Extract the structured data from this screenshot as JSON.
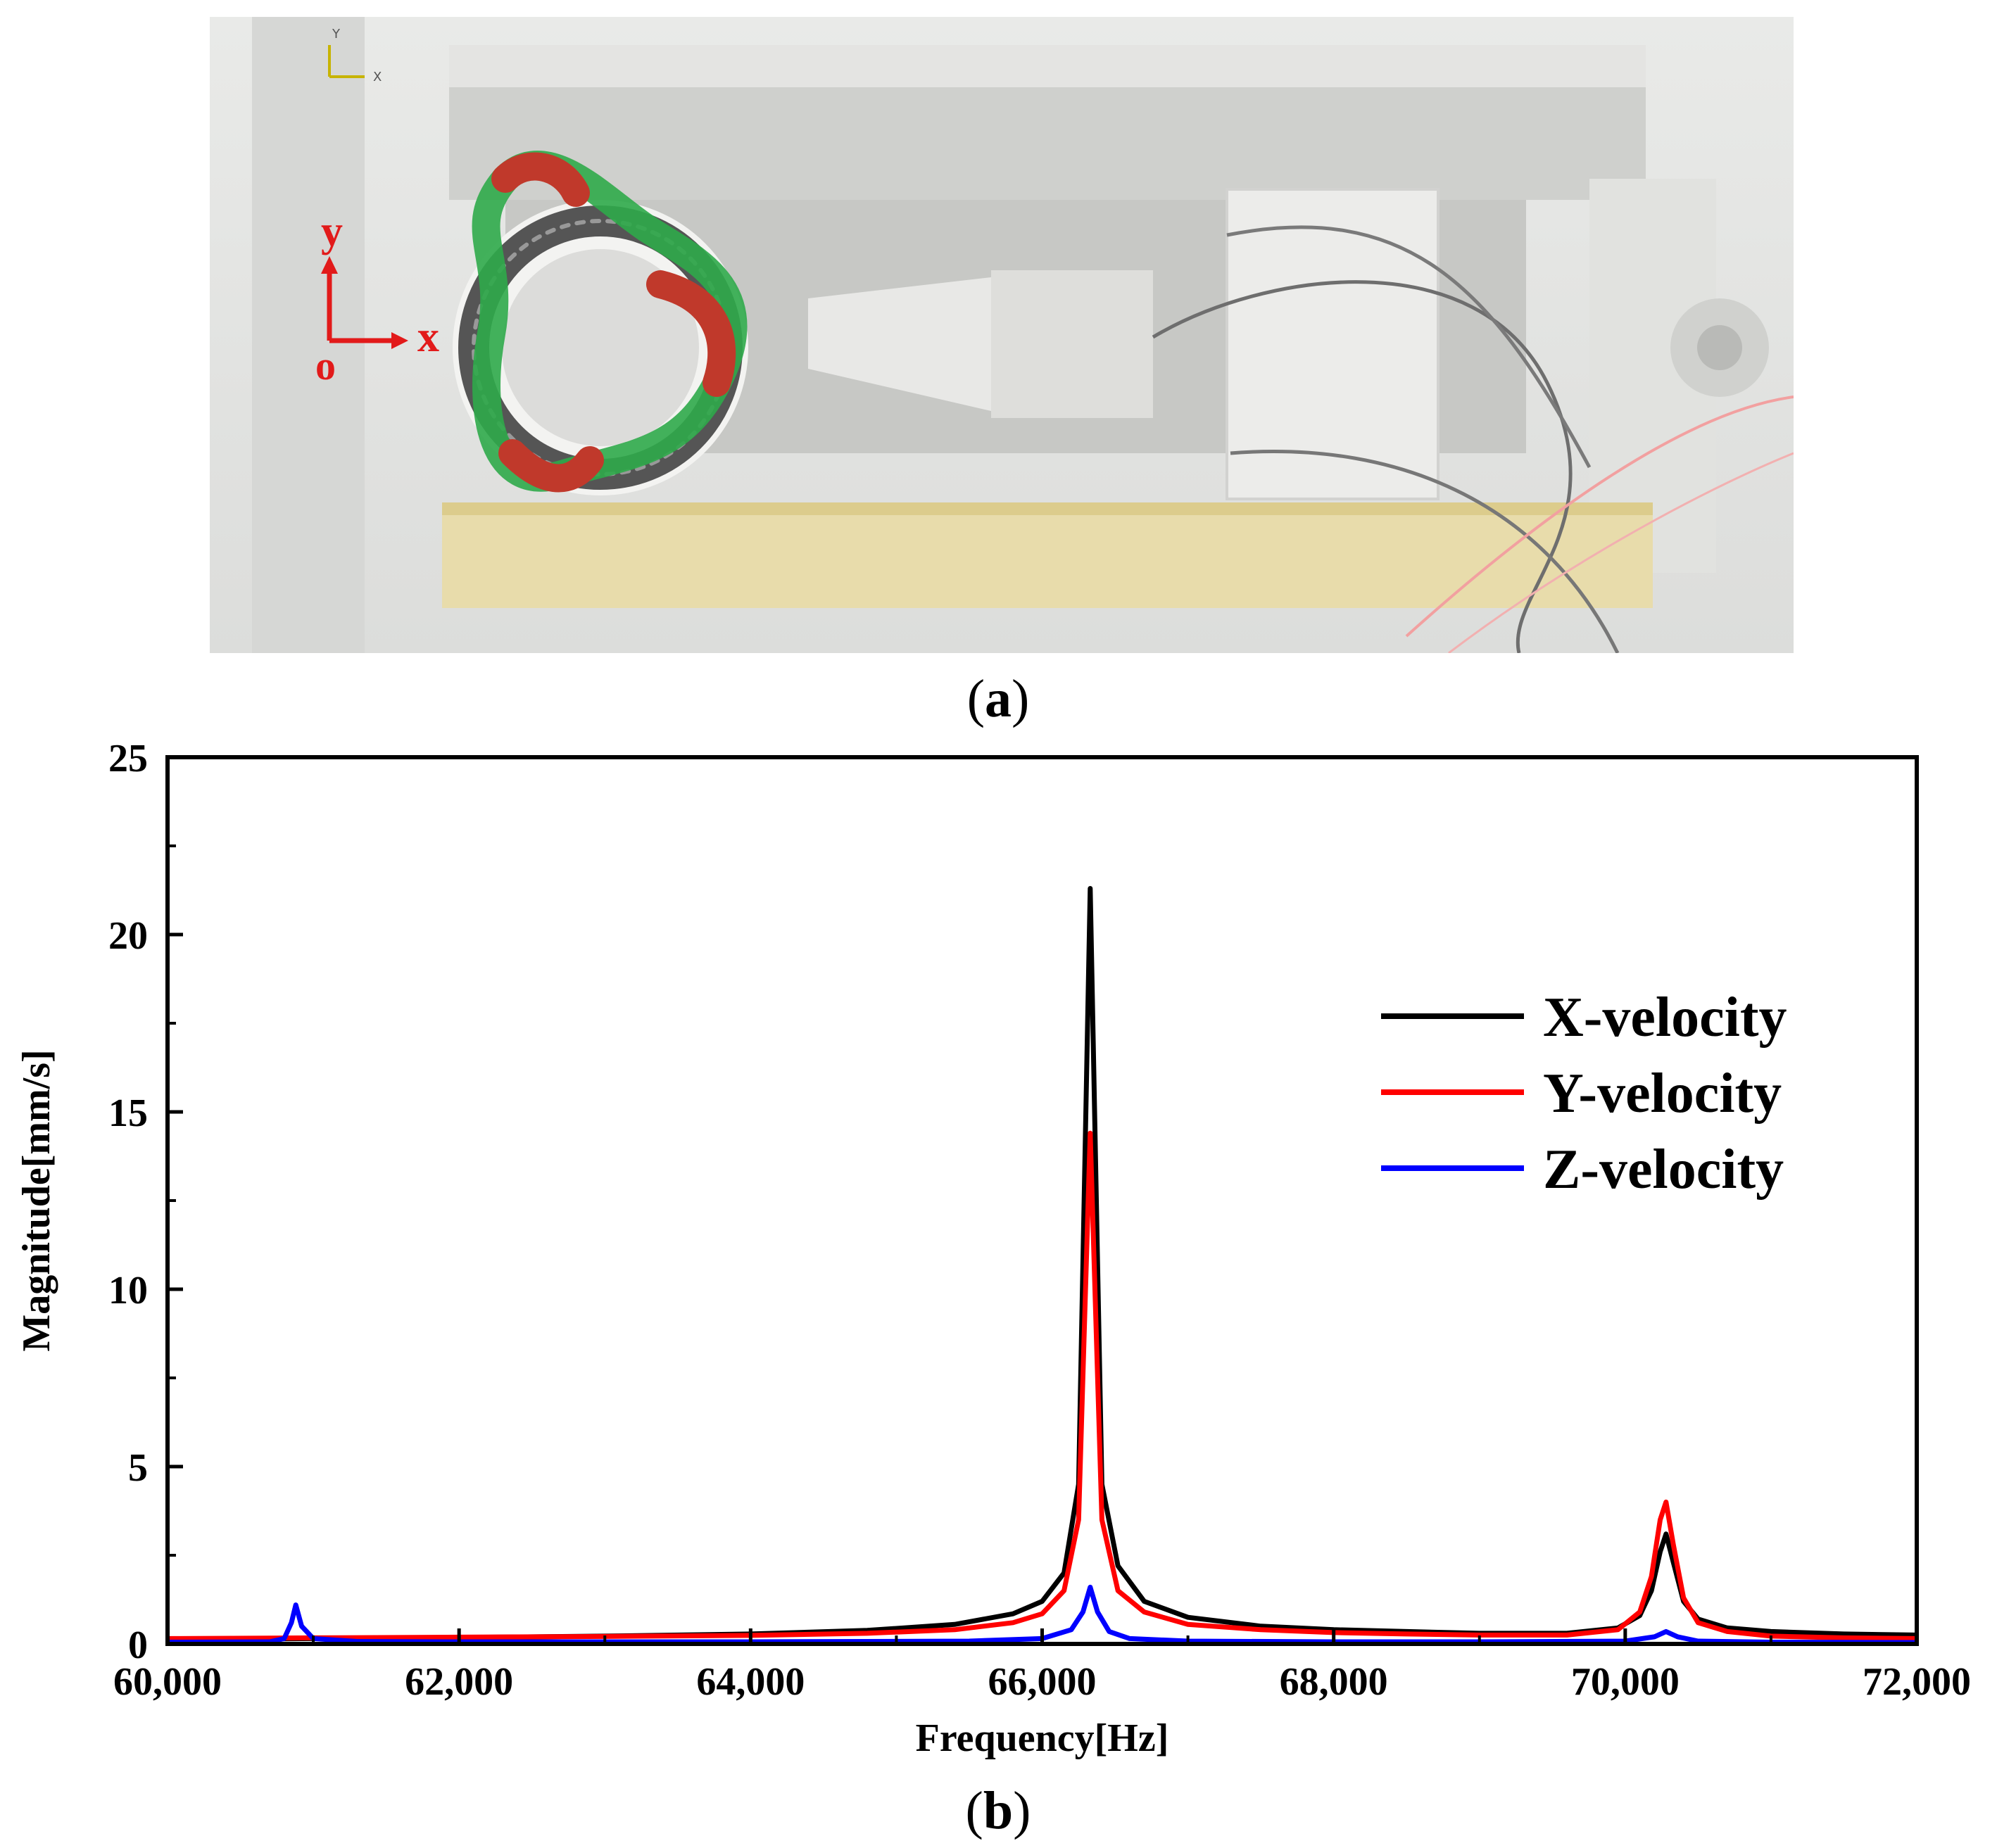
{
  "figure": {
    "panel_a": {
      "caption_prefix": "(",
      "caption_letter": "a",
      "caption_suffix": ")",
      "coordinate_labels": {
        "y": "y",
        "x": "x",
        "origin": "o"
      },
      "triad_labels": {
        "y": "Y",
        "x": "X"
      }
    },
    "panel_b": {
      "caption_prefix": "(",
      "caption_letter": "b",
      "caption_suffix": ")"
    }
  },
  "chart_data": {
    "type": "line",
    "title": "",
    "xlabel": "Frequency[Hz]",
    "ylabel": "Magnitude[mm/s]",
    "xlim": [
      60000,
      72000
    ],
    "ylim": [
      0,
      25
    ],
    "xticks": [
      60000,
      62000,
      64000,
      66000,
      68000,
      70000,
      72000
    ],
    "xtick_labels": [
      "60,000",
      "62,000",
      "64,000",
      "66,000",
      "68,000",
      "70,000",
      "72,000"
    ],
    "yticks": [
      0,
      5,
      10,
      15,
      20,
      25
    ],
    "ytick_labels": [
      "0",
      "5",
      "10",
      "15",
      "20",
      "25"
    ],
    "legend_position": "upper-right",
    "series": [
      {
        "name": "X-velocity",
        "color": "#000000",
        "x": [
          60000,
          61000,
          62000,
          63000,
          64000,
          64800,
          65400,
          65800,
          66000,
          66150,
          66250,
          66330,
          66410,
          66520,
          66700,
          67000,
          67500,
          68000,
          68500,
          69000,
          69600,
          69950,
          70100,
          70180,
          70240,
          70280,
          70330,
          70400,
          70500,
          70700,
          71000,
          71500,
          72000
        ],
        "y": [
          0.12,
          0.15,
          0.18,
          0.22,
          0.28,
          0.38,
          0.55,
          0.85,
          1.2,
          2.0,
          4.5,
          21.3,
          4.5,
          2.2,
          1.2,
          0.75,
          0.5,
          0.4,
          0.35,
          0.3,
          0.3,
          0.45,
          0.8,
          1.5,
          2.6,
          3.1,
          2.3,
          1.2,
          0.7,
          0.45,
          0.35,
          0.28,
          0.25
        ]
      },
      {
        "name": "Y-velocity",
        "color": "#ff0000",
        "x": [
          60000,
          61000,
          62000,
          63000,
          64000,
          64800,
          65400,
          65800,
          66000,
          66150,
          66250,
          66330,
          66410,
          66520,
          66700,
          67000,
          67500,
          68000,
          68500,
          69000,
          69600,
          69950,
          70100,
          70180,
          70240,
          70280,
          70330,
          70400,
          70500,
          70700,
          71000,
          71500,
          72000
        ],
        "y": [
          0.15,
          0.17,
          0.19,
          0.21,
          0.24,
          0.3,
          0.4,
          0.6,
          0.85,
          1.5,
          3.5,
          14.4,
          3.5,
          1.5,
          0.9,
          0.55,
          0.4,
          0.32,
          0.28,
          0.25,
          0.25,
          0.4,
          0.9,
          1.9,
          3.5,
          4.0,
          2.8,
          1.3,
          0.6,
          0.35,
          0.22,
          0.17,
          0.15
        ]
      },
      {
        "name": "Z-velocity",
        "color": "#0000ff",
        "x": [
          60000,
          60700,
          60800,
          60850,
          60880,
          60920,
          61000,
          61300,
          62000,
          64000,
          65500,
          66000,
          66200,
          66280,
          66330,
          66380,
          66460,
          66600,
          67000,
          68000,
          69000,
          70000,
          70200,
          70280,
          70360,
          70500,
          71000,
          72000
        ],
        "y": [
          0.05,
          0.06,
          0.15,
          0.6,
          1.1,
          0.5,
          0.15,
          0.07,
          0.06,
          0.06,
          0.08,
          0.15,
          0.4,
          0.9,
          1.6,
          0.9,
          0.35,
          0.15,
          0.08,
          0.06,
          0.06,
          0.08,
          0.2,
          0.35,
          0.2,
          0.08,
          0.05,
          0.04
        ]
      }
    ]
  }
}
